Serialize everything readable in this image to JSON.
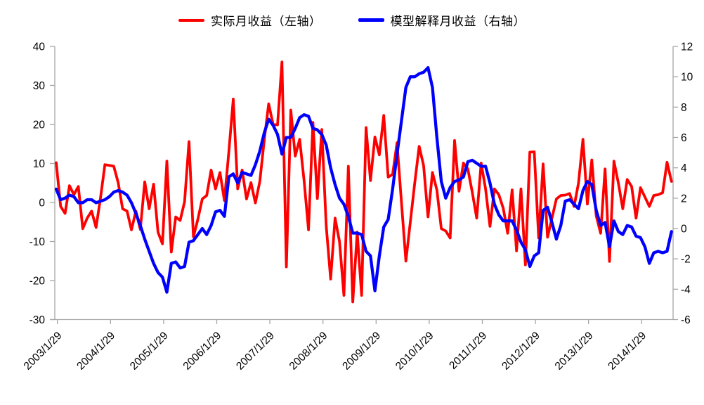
{
  "chart_data": {
    "type": "line",
    "title": "",
    "frequency": "monthly",
    "x_start_label": "2003/1/29",
    "x_tick_labels": [
      "2003/1/29",
      "2004/1/29",
      "2005/1/29",
      "2006/1/29",
      "2007/1/29",
      "2008/1/29",
      "2009/1/29",
      "2010/1/29",
      "2011/1/29",
      "2012/1/29",
      "2013/1/29",
      "2014/1/29"
    ],
    "left_axis": {
      "min": -30,
      "max": 40,
      "ticks": [
        40,
        30,
        20,
        10,
        0,
        -10,
        -20,
        -30
      ]
    },
    "right_axis": {
      "min": -6,
      "max": 12,
      "ticks": [
        12,
        10,
        8,
        6,
        4,
        2,
        0,
        -2,
        -4,
        -6
      ]
    },
    "legend_position": "top-center",
    "grid": false,
    "colors": {
      "actual": "#ff0000",
      "model": "#0000ff",
      "axis": "#a6a6a6",
      "text": "#000000"
    },
    "series": [
      {
        "name": "实际月收益（左轴）",
        "axis": "left",
        "color": "#ff0000",
        "values": [
          10.2,
          -1.0,
          -2.8,
          4.3,
          2.0,
          4.1,
          -6.7,
          -4.0,
          -2.2,
          -6.4,
          1.1,
          9.7,
          9.5,
          9.3,
          5.1,
          -1.6,
          -2.2,
          -7.0,
          -2.2,
          -6.9,
          5.3,
          -1.6,
          4.7,
          -7.6,
          -10.6,
          10.6,
          -12.7,
          -3.7,
          -4.6,
          0.2,
          15.6,
          -8.8,
          -4.3,
          0.9,
          1.8,
          8.3,
          3.5,
          7.7,
          0.5,
          13.0,
          26.5,
          3.5,
          8.3,
          0.9,
          5.1,
          -0.1,
          5.4,
          16.0,
          25.3,
          20.0,
          19.9,
          36.0,
          -16.5,
          23.7,
          11.9,
          16.2,
          5.6,
          -7.0,
          20.5,
          1.0,
          18.7,
          -6.0,
          -19.6,
          -4.0,
          -10.0,
          -23.8,
          9.3,
          -25.5,
          -7.6,
          -23.8,
          19.2,
          5.6,
          16.8,
          12.2,
          22.3,
          6.5,
          7.2,
          15.3,
          0.0,
          -15.0,
          -5.0,
          5.0,
          14.4,
          9.5,
          -3.7,
          7.7,
          3.2,
          -6.7,
          -7.3,
          -9.1,
          15.9,
          2.9,
          10.1,
          8.6,
          2.6,
          -4.0,
          10.1,
          3.5,
          -6.1,
          3.5,
          2.0,
          -1.5,
          -7.9,
          3.2,
          -12.4,
          3.5,
          -16.0,
          12.9,
          13.0,
          -9.1,
          9.9,
          -8.9,
          -4.0,
          0.9,
          1.8,
          1.9,
          2.3,
          -1.0,
          5.0,
          16.2,
          -0.4,
          10.9,
          -3.4,
          -7.9,
          8.6,
          -15.1,
          10.6,
          5.0,
          -1.6,
          5.9,
          4.1,
          -4.0,
          3.8,
          1.4,
          -1.0,
          1.8,
          2.0,
          2.5,
          10.3,
          5.4
        ]
      },
      {
        "name": "模型解释月收益（右轴）",
        "axis": "right",
        "color": "#0000ff",
        "values": [
          2.6,
          1.9,
          2.0,
          2.2,
          2.1,
          1.7,
          1.7,
          1.9,
          1.9,
          1.7,
          1.8,
          1.9,
          2.1,
          2.4,
          2.5,
          2.4,
          2.2,
          1.7,
          1.0,
          0.2,
          -0.7,
          -1.5,
          -2.3,
          -2.9,
          -3.2,
          -4.2,
          -2.3,
          -2.2,
          -2.6,
          -2.5,
          -0.9,
          -0.8,
          -0.4,
          0.0,
          -0.4,
          0.2,
          1.1,
          1.2,
          0.8,
          3.4,
          3.6,
          3.0,
          3.7,
          3.6,
          3.5,
          4.2,
          5.1,
          6.3,
          7.2,
          6.8,
          6.2,
          4.9,
          6.0,
          6.0,
          6.6,
          7.3,
          7.5,
          7.4,
          6.6,
          6.5,
          6.2,
          5.5,
          4.0,
          2.9,
          2.0,
          1.6,
          0.8,
          -0.3,
          -0.3,
          -0.4,
          -1.5,
          -1.8,
          -4.1,
          -1.8,
          0.1,
          0.6,
          2.6,
          4.9,
          7.1,
          9.3,
          10.0,
          10.0,
          10.2,
          10.3,
          10.6,
          9.3,
          6.0,
          3.1,
          2.0,
          2.7,
          3.1,
          3.2,
          3.4,
          4.4,
          4.5,
          4.3,
          4.1,
          4.1,
          3.0,
          1.6,
          0.9,
          0.5,
          0.5,
          0.5,
          -0.1,
          -0.9,
          -1.4,
          -2.5,
          -1.8,
          -1.6,
          1.2,
          1.4,
          0.4,
          -0.7,
          0.2,
          1.8,
          1.9,
          1.6,
          1.3,
          2.5,
          3.1,
          2.9,
          1.2,
          0.2,
          0.4,
          -1.2,
          0.5,
          -0.2,
          -0.4,
          0.2,
          0.1,
          -0.5,
          -0.6,
          -1.2,
          -2.3,
          -1.6,
          -1.5,
          -1.6,
          -1.5,
          -0.2
        ]
      }
    ]
  }
}
